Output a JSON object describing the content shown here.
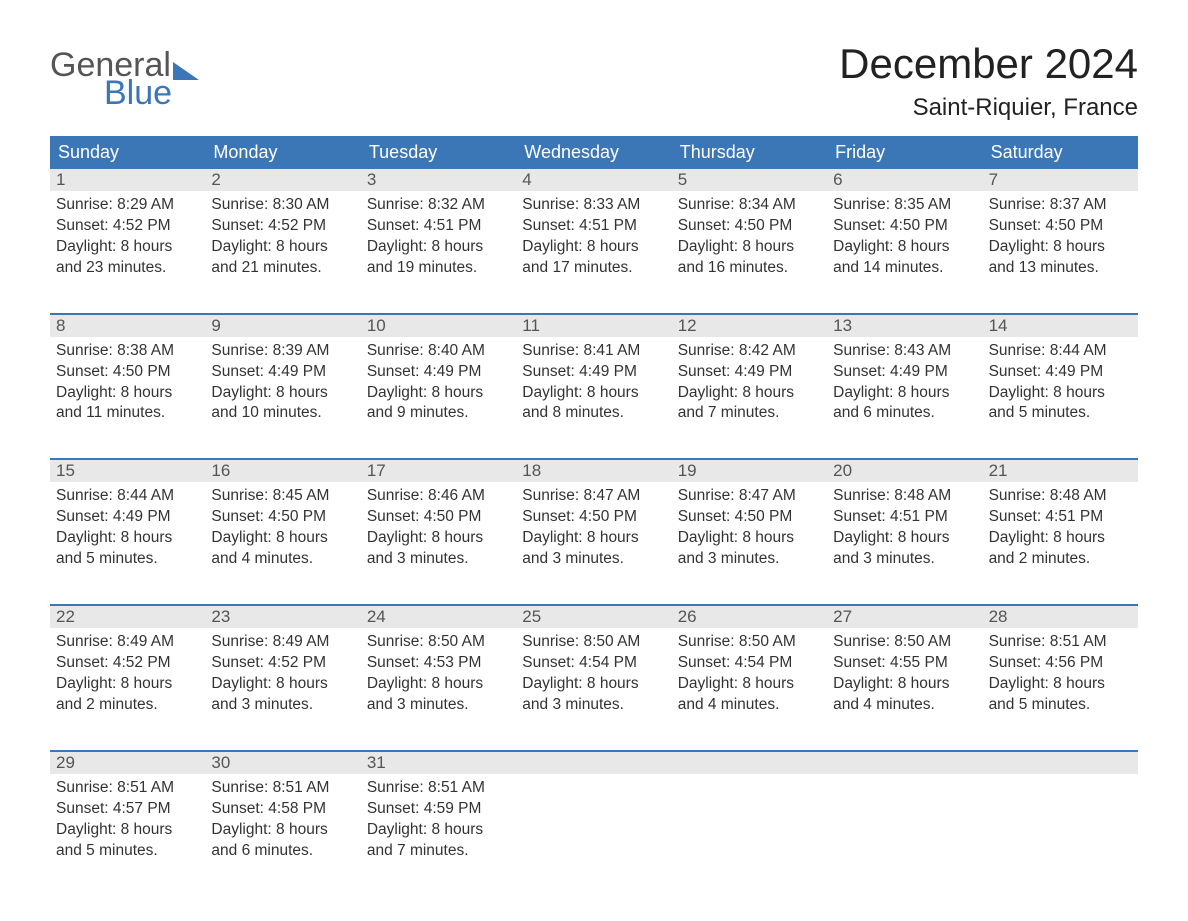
{
  "brand": {
    "word1": "General",
    "word2": "Blue",
    "text_color": "#555555",
    "accent_color": "#3b77b6"
  },
  "title": "December 2024",
  "location": "Saint-Riquier, France",
  "colors": {
    "header_bg": "#3b77b6",
    "header_text": "#ffffff",
    "daynum_bg": "#e8e8e8",
    "daynum_text": "#555555",
    "body_text": "#333333",
    "week_border": "#3b77b6",
    "page_bg": "#ffffff"
  },
  "dayNames": [
    "Sunday",
    "Monday",
    "Tuesday",
    "Wednesday",
    "Thursday",
    "Friday",
    "Saturday"
  ],
  "weeks": [
    [
      {
        "n": "1",
        "sr": "Sunrise: 8:29 AM",
        "ss": "Sunset: 4:52 PM",
        "d1": "Daylight: 8 hours",
        "d2": "and 23 minutes."
      },
      {
        "n": "2",
        "sr": "Sunrise: 8:30 AM",
        "ss": "Sunset: 4:52 PM",
        "d1": "Daylight: 8 hours",
        "d2": "and 21 minutes."
      },
      {
        "n": "3",
        "sr": "Sunrise: 8:32 AM",
        "ss": "Sunset: 4:51 PM",
        "d1": "Daylight: 8 hours",
        "d2": "and 19 minutes."
      },
      {
        "n": "4",
        "sr": "Sunrise: 8:33 AM",
        "ss": "Sunset: 4:51 PM",
        "d1": "Daylight: 8 hours",
        "d2": "and 17 minutes."
      },
      {
        "n": "5",
        "sr": "Sunrise: 8:34 AM",
        "ss": "Sunset: 4:50 PM",
        "d1": "Daylight: 8 hours",
        "d2": "and 16 minutes."
      },
      {
        "n": "6",
        "sr": "Sunrise: 8:35 AM",
        "ss": "Sunset: 4:50 PM",
        "d1": "Daylight: 8 hours",
        "d2": "and 14 minutes."
      },
      {
        "n": "7",
        "sr": "Sunrise: 8:37 AM",
        "ss": "Sunset: 4:50 PM",
        "d1": "Daylight: 8 hours",
        "d2": "and 13 minutes."
      }
    ],
    [
      {
        "n": "8",
        "sr": "Sunrise: 8:38 AM",
        "ss": "Sunset: 4:50 PM",
        "d1": "Daylight: 8 hours",
        "d2": "and 11 minutes."
      },
      {
        "n": "9",
        "sr": "Sunrise: 8:39 AM",
        "ss": "Sunset: 4:49 PM",
        "d1": "Daylight: 8 hours",
        "d2": "and 10 minutes."
      },
      {
        "n": "10",
        "sr": "Sunrise: 8:40 AM",
        "ss": "Sunset: 4:49 PM",
        "d1": "Daylight: 8 hours",
        "d2": "and 9 minutes."
      },
      {
        "n": "11",
        "sr": "Sunrise: 8:41 AM",
        "ss": "Sunset: 4:49 PM",
        "d1": "Daylight: 8 hours",
        "d2": "and 8 minutes."
      },
      {
        "n": "12",
        "sr": "Sunrise: 8:42 AM",
        "ss": "Sunset: 4:49 PM",
        "d1": "Daylight: 8 hours",
        "d2": "and 7 minutes."
      },
      {
        "n": "13",
        "sr": "Sunrise: 8:43 AM",
        "ss": "Sunset: 4:49 PM",
        "d1": "Daylight: 8 hours",
        "d2": "and 6 minutes."
      },
      {
        "n": "14",
        "sr": "Sunrise: 8:44 AM",
        "ss": "Sunset: 4:49 PM",
        "d1": "Daylight: 8 hours",
        "d2": "and 5 minutes."
      }
    ],
    [
      {
        "n": "15",
        "sr": "Sunrise: 8:44 AM",
        "ss": "Sunset: 4:49 PM",
        "d1": "Daylight: 8 hours",
        "d2": "and 5 minutes."
      },
      {
        "n": "16",
        "sr": "Sunrise: 8:45 AM",
        "ss": "Sunset: 4:50 PM",
        "d1": "Daylight: 8 hours",
        "d2": "and 4 minutes."
      },
      {
        "n": "17",
        "sr": "Sunrise: 8:46 AM",
        "ss": "Sunset: 4:50 PM",
        "d1": "Daylight: 8 hours",
        "d2": "and 3 minutes."
      },
      {
        "n": "18",
        "sr": "Sunrise: 8:47 AM",
        "ss": "Sunset: 4:50 PM",
        "d1": "Daylight: 8 hours",
        "d2": "and 3 minutes."
      },
      {
        "n": "19",
        "sr": "Sunrise: 8:47 AM",
        "ss": "Sunset: 4:50 PM",
        "d1": "Daylight: 8 hours",
        "d2": "and 3 minutes."
      },
      {
        "n": "20",
        "sr": "Sunrise: 8:48 AM",
        "ss": "Sunset: 4:51 PM",
        "d1": "Daylight: 8 hours",
        "d2": "and 3 minutes."
      },
      {
        "n": "21",
        "sr": "Sunrise: 8:48 AM",
        "ss": "Sunset: 4:51 PM",
        "d1": "Daylight: 8 hours",
        "d2": "and 2 minutes."
      }
    ],
    [
      {
        "n": "22",
        "sr": "Sunrise: 8:49 AM",
        "ss": "Sunset: 4:52 PM",
        "d1": "Daylight: 8 hours",
        "d2": "and 2 minutes."
      },
      {
        "n": "23",
        "sr": "Sunrise: 8:49 AM",
        "ss": "Sunset: 4:52 PM",
        "d1": "Daylight: 8 hours",
        "d2": "and 3 minutes."
      },
      {
        "n": "24",
        "sr": "Sunrise: 8:50 AM",
        "ss": "Sunset: 4:53 PM",
        "d1": "Daylight: 8 hours",
        "d2": "and 3 minutes."
      },
      {
        "n": "25",
        "sr": "Sunrise: 8:50 AM",
        "ss": "Sunset: 4:54 PM",
        "d1": "Daylight: 8 hours",
        "d2": "and 3 minutes."
      },
      {
        "n": "26",
        "sr": "Sunrise: 8:50 AM",
        "ss": "Sunset: 4:54 PM",
        "d1": "Daylight: 8 hours",
        "d2": "and 4 minutes."
      },
      {
        "n": "27",
        "sr": "Sunrise: 8:50 AM",
        "ss": "Sunset: 4:55 PM",
        "d1": "Daylight: 8 hours",
        "d2": "and 4 minutes."
      },
      {
        "n": "28",
        "sr": "Sunrise: 8:51 AM",
        "ss": "Sunset: 4:56 PM",
        "d1": "Daylight: 8 hours",
        "d2": "and 5 minutes."
      }
    ],
    [
      {
        "n": "29",
        "sr": "Sunrise: 8:51 AM",
        "ss": "Sunset: 4:57 PM",
        "d1": "Daylight: 8 hours",
        "d2": "and 5 minutes."
      },
      {
        "n": "30",
        "sr": "Sunrise: 8:51 AM",
        "ss": "Sunset: 4:58 PM",
        "d1": "Daylight: 8 hours",
        "d2": "and 6 minutes."
      },
      {
        "n": "31",
        "sr": "Sunrise: 8:51 AM",
        "ss": "Sunset: 4:59 PM",
        "d1": "Daylight: 8 hours",
        "d2": "and 7 minutes."
      },
      {
        "n": "",
        "sr": "",
        "ss": "",
        "d1": "",
        "d2": ""
      },
      {
        "n": "",
        "sr": "",
        "ss": "",
        "d1": "",
        "d2": ""
      },
      {
        "n": "",
        "sr": "",
        "ss": "",
        "d1": "",
        "d2": ""
      },
      {
        "n": "",
        "sr": "",
        "ss": "",
        "d1": "",
        "d2": ""
      }
    ]
  ]
}
